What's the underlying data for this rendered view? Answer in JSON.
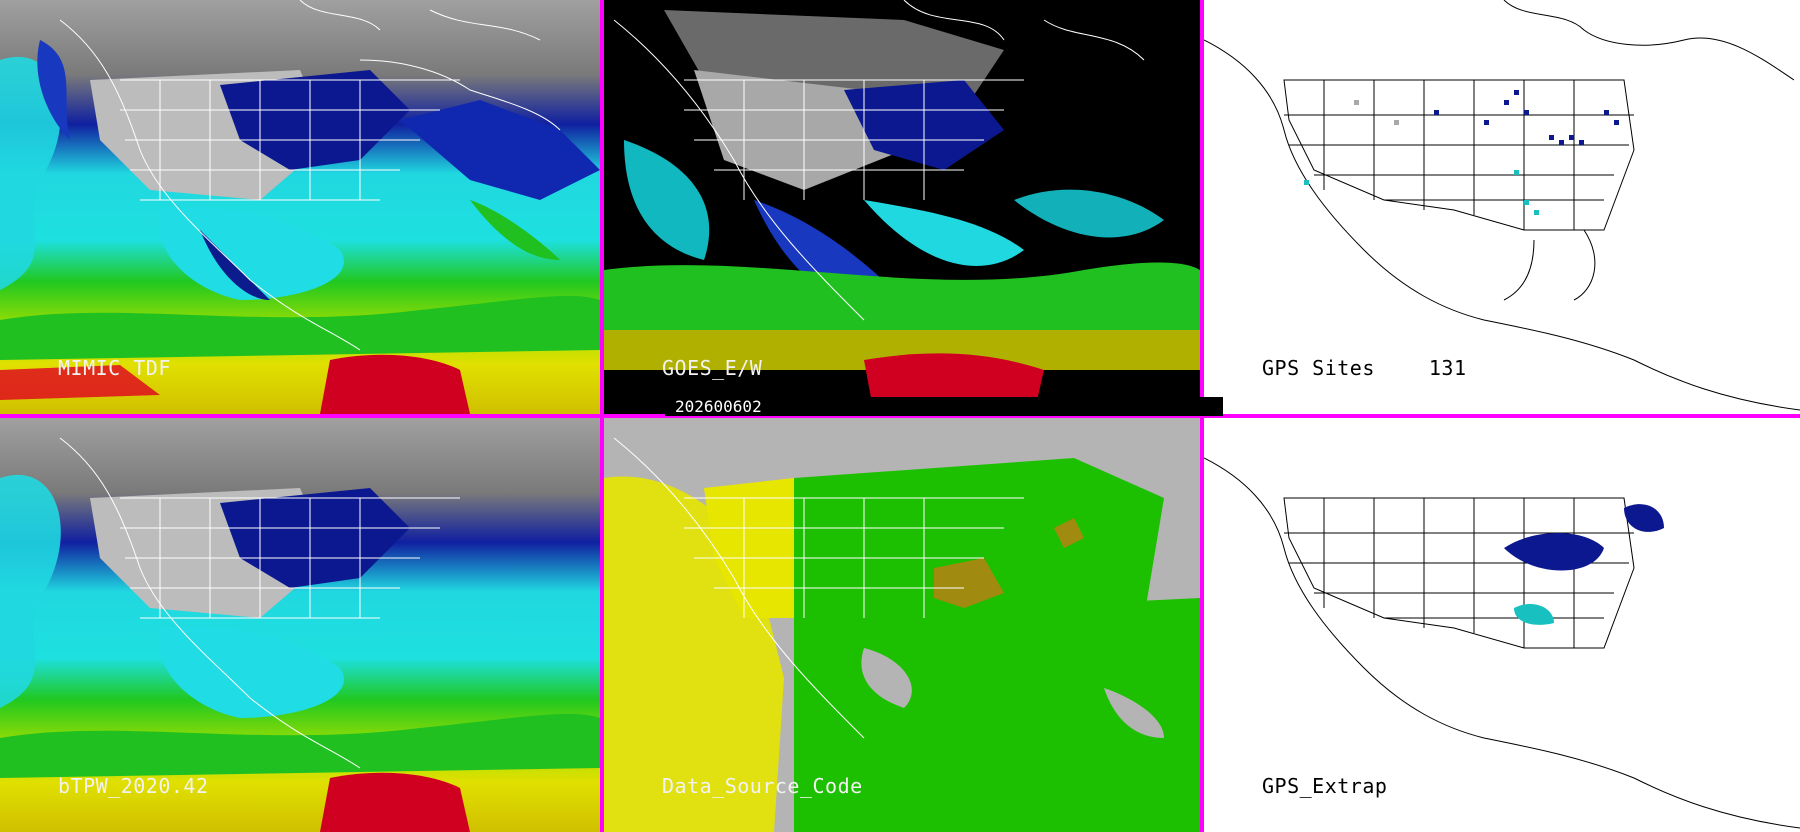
{
  "date_stamp": "202600602",
  "panels": [
    {
      "id": "mimic-tpw",
      "label": "MIMIC TDF",
      "scheme": "tpw"
    },
    {
      "id": "goes-ew",
      "label": "GOES_E/W",
      "scheme": "goes"
    },
    {
      "id": "gps-sites",
      "label": "GPS Sites",
      "count": "131",
      "scheme": "gps"
    },
    {
      "id": "btpw",
      "label": "bTPW_2020.42",
      "scheme": "tpw"
    },
    {
      "id": "data-source",
      "label": "Data_Source_Code",
      "scheme": "source"
    },
    {
      "id": "gps-extrap",
      "label": "GPS_Extrap",
      "scheme": "gps"
    }
  ],
  "colors": {
    "divider": "#ff00ff",
    "land_gray": "#a8a8a8",
    "dark_blue": "#0b1f8a",
    "cyan": "#18e0e0",
    "green": "#20c020",
    "yellow": "#e0e000",
    "red": "#d00020",
    "source_gray": "#b4b4b4",
    "source_green": "#1cc000",
    "source_yellow": "#e6e600",
    "source_olive": "#a08a10"
  }
}
